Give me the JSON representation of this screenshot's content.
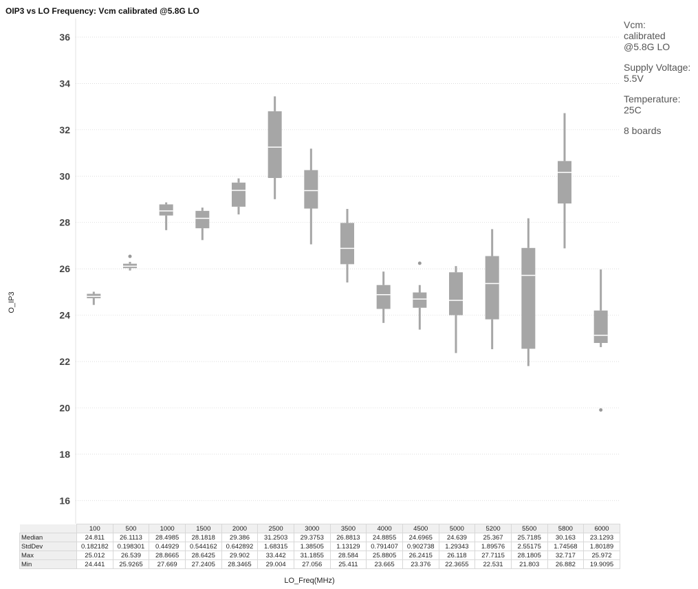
{
  "chart_data": {
    "type": "box",
    "title": "OIP3 vs LO Frequency: Vcm calibrated @5.8G LO",
    "ylabel": "O_IP3",
    "xlabel": "LO_Freq(MHz)",
    "ylim": [
      15,
      36.8
    ],
    "yticks": [
      16,
      18,
      20,
      22,
      24,
      26,
      28,
      30,
      32,
      34,
      36
    ],
    "grid": true,
    "color": "#a6a6a6",
    "median_color": "#ffffff",
    "categories": [
      "100",
      "500",
      "1000",
      "1500",
      "2000",
      "2500",
      "3000",
      "3500",
      "4000",
      "4500",
      "5000",
      "5200",
      "5500",
      "5800",
      "6000"
    ],
    "boxes": [
      {
        "min": 24.441,
        "q1": 24.73,
        "median": 24.811,
        "q3": 24.92,
        "max": 25.012,
        "outliers": []
      },
      {
        "min": 25.9265,
        "q1": 26.03,
        "median": 26.1113,
        "q3": 26.22,
        "max": 26.3,
        "outliers": [
          26.539
        ]
      },
      {
        "min": 27.669,
        "q1": 28.3,
        "median": 28.4985,
        "q3": 28.78,
        "max": 28.8665,
        "outliers": []
      },
      {
        "min": 27.2405,
        "q1": 27.75,
        "median": 28.1818,
        "q3": 28.5,
        "max": 28.6425,
        "outliers": []
      },
      {
        "min": 28.3465,
        "q1": 28.68,
        "median": 29.386,
        "q3": 29.72,
        "max": 29.902,
        "outliers": []
      },
      {
        "min": 29.004,
        "q1": 29.92,
        "median": 31.2503,
        "q3": 32.8,
        "max": 33.442,
        "outliers": []
      },
      {
        "min": 27.056,
        "q1": 28.6,
        "median": 29.3753,
        "q3": 30.26,
        "max": 31.1855,
        "outliers": []
      },
      {
        "min": 25.411,
        "q1": 26.2,
        "median": 26.8813,
        "q3": 27.98,
        "max": 28.584,
        "outliers": []
      },
      {
        "min": 23.665,
        "q1": 24.27,
        "median": 24.8855,
        "q3": 25.3,
        "max": 25.8805,
        "outliers": []
      },
      {
        "min": 23.376,
        "q1": 24.32,
        "median": 24.6965,
        "q3": 24.98,
        "max": 25.3,
        "outliers": [
          26.2415
        ]
      },
      {
        "min": 22.3655,
        "q1": 24.0,
        "median": 24.639,
        "q3": 25.85,
        "max": 26.118,
        "outliers": []
      },
      {
        "min": 22.531,
        "q1": 23.82,
        "median": 25.367,
        "q3": 26.55,
        "max": 27.7115,
        "outliers": []
      },
      {
        "min": 21.803,
        "q1": 22.55,
        "median": 25.7185,
        "q3": 26.9,
        "max": 28.1805,
        "outliers": []
      },
      {
        "min": 26.882,
        "q1": 28.82,
        "median": 30.163,
        "q3": 30.65,
        "max": 32.717,
        "outliers": []
      },
      {
        "min": 22.62,
        "q1": 22.8,
        "median": 23.1293,
        "q3": 24.2,
        "max": 25.972,
        "outliers": [
          19.9095
        ]
      }
    ]
  },
  "annotations": [
    {
      "lines": [
        "Vcm:",
        "calibrated",
        "@5.8G LO"
      ]
    },
    {
      "lines": [
        "Supply Voltage:",
        "5.5V"
      ]
    },
    {
      "lines": [
        "Temperature:",
        "25C"
      ]
    },
    {
      "lines": [
        "8 boards"
      ]
    }
  ],
  "stats_table": {
    "rows": [
      {
        "label": "Median",
        "values": [
          "24.811",
          "26.1113",
          "28.4985",
          "28.1818",
          "29.386",
          "31.2503",
          "29.3753",
          "26.8813",
          "24.8855",
          "24.6965",
          "24.639",
          "25.367",
          "25.7185",
          "30.163",
          "23.1293"
        ]
      },
      {
        "label": "StdDev",
        "values": [
          "0.182182",
          "0.198301",
          "0.44929",
          "0.544162",
          "0.642892",
          "1.68315",
          "1.38505",
          "1.13129",
          "0.791407",
          "0.902738",
          "1.29343",
          "1.89576",
          "2.55175",
          "1.74568",
          "1.80189"
        ]
      },
      {
        "label": "Max",
        "values": [
          "25.012",
          "26.539",
          "28.8665",
          "28.6425",
          "29.902",
          "33.442",
          "31.1855",
          "28.584",
          "25.8805",
          "26.2415",
          "26.118",
          "27.7115",
          "28.1805",
          "32.717",
          "25.972"
        ]
      },
      {
        "label": "Min",
        "values": [
          "24.441",
          "25.9265",
          "27.669",
          "27.2405",
          "28.3465",
          "29.004",
          "27.056",
          "25.411",
          "23.665",
          "23.376",
          "22.3655",
          "22.531",
          "21.803",
          "26.882",
          "19.9095"
        ]
      }
    ]
  }
}
